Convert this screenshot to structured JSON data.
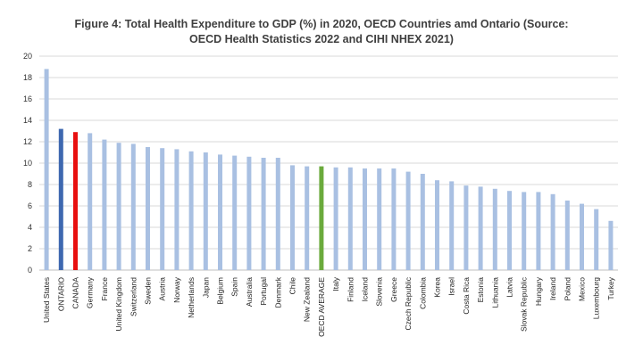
{
  "chart_data": {
    "type": "bar",
    "title_lines": [
      "Figure 4: Total Health Expenditure to GDP (%) in 2020, OECD Countries amd Ontario (Source:",
      "OECD Health Statistics 2022 and CIHI NHEX 2021)"
    ],
    "xlabel": "",
    "ylabel": "",
    "ylim": [
      0,
      20
    ],
    "yticks": [
      0,
      2,
      4,
      6,
      8,
      10,
      12,
      14,
      16,
      18,
      20
    ],
    "grid": true,
    "legend": "none",
    "categories": [
      "United States",
      "ONTARIO",
      "CANADA",
      "Germany",
      "France",
      "United Kingdom",
      "Switzerland",
      "Sweden",
      "Austria",
      "Norway",
      "Netherlands",
      "Japan",
      "Belgium",
      "Spain",
      "Australia",
      "Portugal",
      "Denmark",
      "Chile",
      "New Zealand",
      "OECD AVERAGE",
      "Italy",
      "Finland",
      "Iceland",
      "Slovenia",
      "Greece",
      "Czech Republic",
      "Colombia",
      "Korea",
      "Israel",
      "Costa Rica",
      "Estonia",
      "Lithuania",
      "Latvia",
      "Slovak Republic",
      "Hungary",
      "Ireland",
      "Poland",
      "Mexico",
      "Luxembourg",
      "Turkey"
    ],
    "values": [
      18.8,
      13.2,
      12.9,
      12.8,
      12.2,
      11.9,
      11.8,
      11.5,
      11.4,
      11.3,
      11.1,
      11.0,
      10.8,
      10.7,
      10.6,
      10.5,
      10.5,
      9.8,
      9.7,
      9.7,
      9.6,
      9.6,
      9.5,
      9.5,
      9.5,
      9.2,
      9.0,
      8.4,
      8.3,
      7.9,
      7.8,
      7.6,
      7.4,
      7.3,
      7.3,
      7.1,
      6.5,
      6.2,
      5.7,
      4.6
    ],
    "colors": {
      "default": "#a9c0e2",
      "ONTARIO": "#3e68b0",
      "CANADA": "#e81010",
      "OECD AVERAGE": "#6aaa3c"
    }
  }
}
